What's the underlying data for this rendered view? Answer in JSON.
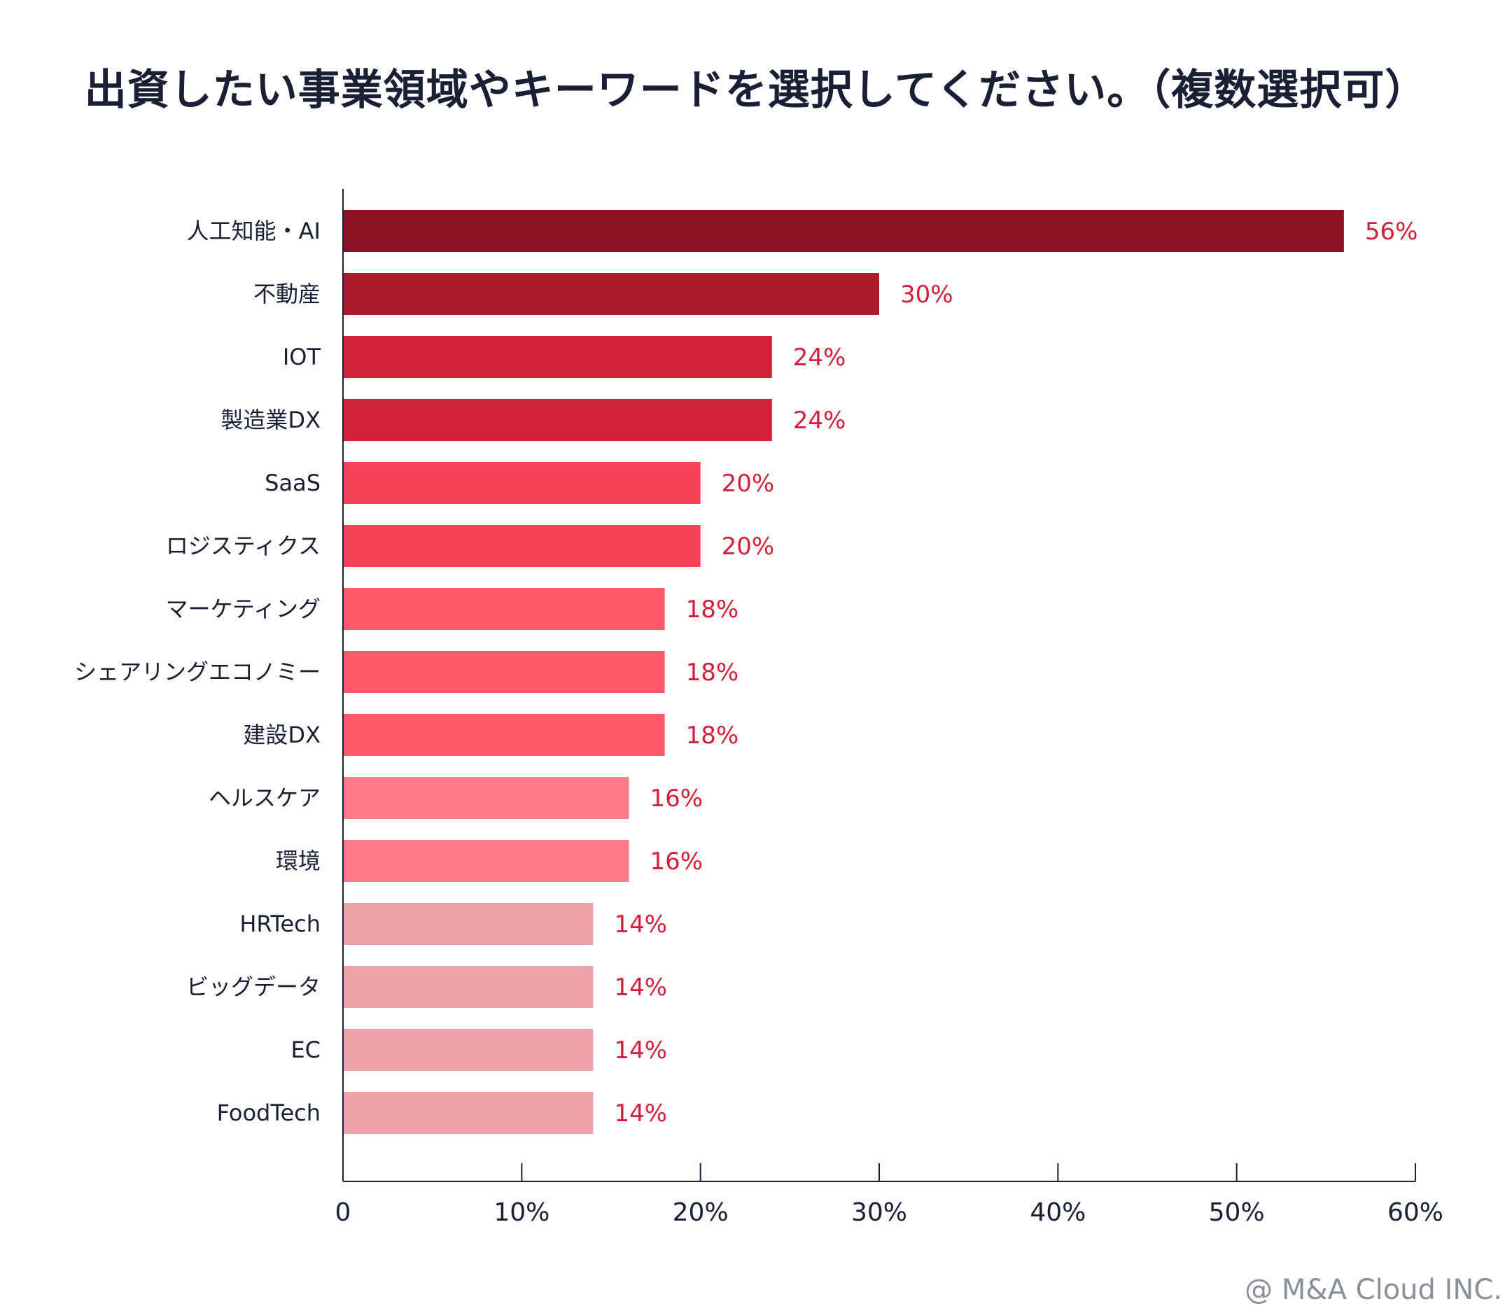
{
  "chart_data": {
    "type": "bar",
    "orientation": "horizontal",
    "title": "出資したい事業領域やキーワードを選択してください。（複数選択可）",
    "categories": [
      "人工知能・AI",
      "不動産",
      "IOT",
      "製造業DX",
      "SaaS",
      "ロジスティクス",
      "マーケティング",
      "シェアリングエコノミー",
      "建設DX",
      "ヘルスケア",
      "環境",
      "HRTech",
      "ビッグデータ",
      "EC",
      "FoodTech"
    ],
    "values": [
      56,
      30,
      24,
      24,
      20,
      20,
      18,
      18,
      18,
      16,
      16,
      14,
      14,
      14,
      14
    ],
    "value_labels": [
      "56%",
      "30%",
      "24%",
      "24%",
      "20%",
      "20%",
      "18%",
      "18%",
      "18%",
      "16%",
      "16%",
      "14%",
      "14%",
      "14%",
      "14%"
    ],
    "colors": [
      "#8b1224",
      "#ab192c",
      "#d22239",
      "#d22239",
      "#f44258",
      "#f44258",
      "#fe5a6b",
      "#fe5a6b",
      "#fe5a6b",
      "#ff7a89",
      "#ff7a89",
      "#f0a2ab",
      "#f0a2ab",
      "#f0a2ab",
      "#f0a2ab"
    ],
    "xlim": [
      0,
      60
    ],
    "xticks": [
      0,
      10,
      20,
      30,
      40,
      50,
      60
    ],
    "xtick_labels": [
      "0",
      "10%",
      "20%",
      "30%",
      "40%",
      "50%",
      "60%"
    ],
    "xlabel": "",
    "ylabel": "",
    "grid": false
  },
  "footer": {
    "copyright": "@ M&A Cloud INC."
  }
}
